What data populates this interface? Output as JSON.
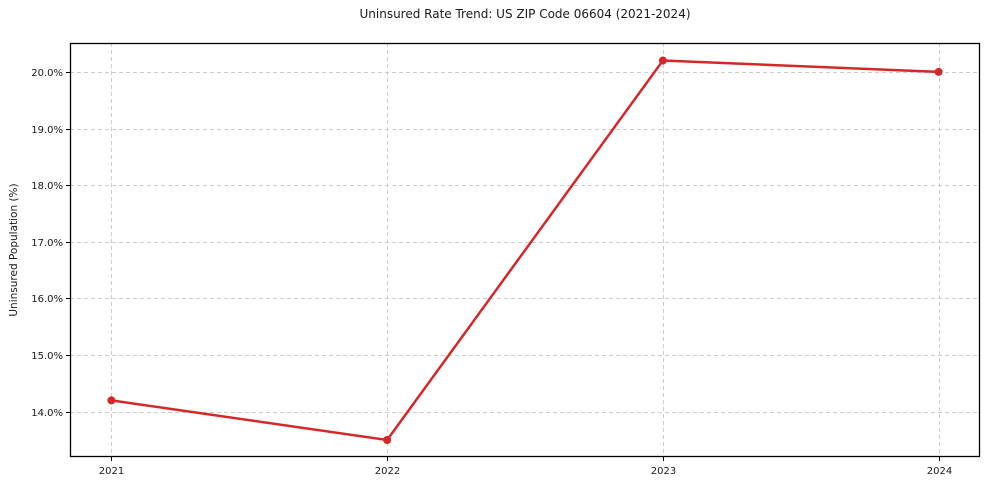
{
  "chart_data": {
    "type": "line",
    "title": "Uninsured Rate Trend: US ZIP Code 06604 (2021-2024)",
    "xlabel": "",
    "ylabel": "Uninsured Population (%)",
    "x": [
      2021,
      2022,
      2023,
      2024
    ],
    "x_tick_labels": [
      "2021",
      "2022",
      "2023",
      "2024"
    ],
    "series": [
      {
        "name": "uninsured_rate",
        "values": [
          14.2,
          13.5,
          20.2,
          20.0
        ],
        "color": "#d62728"
      }
    ],
    "y_ticks": [
      14.0,
      15.0,
      16.0,
      17.0,
      18.0,
      19.0,
      20.0
    ],
    "y_tick_labels": [
      "14.0%",
      "15.0%",
      "16.0%",
      "17.0%",
      "18.0%",
      "19.0%",
      "20.0%"
    ],
    "ylim": [
      13.2,
      20.51
    ],
    "xlim": [
      2020.85,
      2024.15
    ],
    "grid": true,
    "grid_color": "#cccccc",
    "grid_dash": "4 3",
    "spine_color": "#000000",
    "legend_position": "none",
    "marker": "circle",
    "marker_radius": 4,
    "line_width": 2.5
  }
}
